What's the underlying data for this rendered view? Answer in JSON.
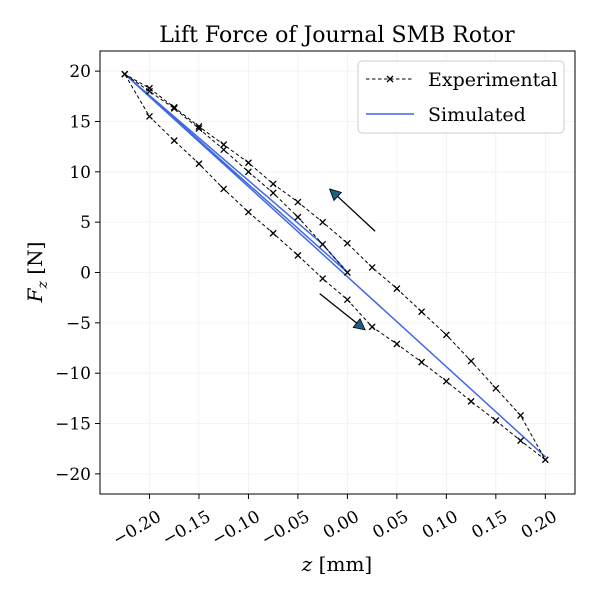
{
  "chart_data": {
    "type": "line",
    "title": "Lift Force of Journal SMB Rotor",
    "xlabel": "z [mm]",
    "ylabel": "F_z [N]",
    "xlim": [
      -0.25,
      0.23
    ],
    "ylim": [
      -22,
      22
    ],
    "x_ticks": [
      -0.2,
      -0.15,
      -0.1,
      -0.05,
      0.0,
      0.05,
      0.1,
      0.15,
      0.2
    ],
    "x_tick_labels": [
      "−0.20",
      "−0.15",
      "−0.10",
      "−0.05",
      "0.00",
      "0.05",
      "0.10",
      "0.15",
      "0.20"
    ],
    "y_ticks": [
      -20,
      -15,
      -10,
      -5,
      0,
      5,
      10,
      15,
      20
    ],
    "y_tick_labels": [
      "−20",
      "−15",
      "−10",
      "−5",
      "0",
      "5",
      "10",
      "15",
      "20"
    ],
    "grid": true,
    "legend_position": "top-right",
    "series": [
      {
        "name": "Experimental",
        "style": "dashed-x",
        "color": "#000000",
        "x": [
          0.0,
          -0.025,
          -0.05,
          -0.075,
          -0.1,
          -0.125,
          -0.15,
          -0.175,
          -0.2,
          -0.225,
          -0.2,
          -0.175,
          -0.15,
          -0.125,
          -0.1,
          -0.075,
          -0.05,
          -0.025,
          0.0,
          0.025,
          0.05,
          0.075,
          0.1,
          0.125,
          0.15,
          0.175,
          0.2,
          0.175,
          0.15,
          0.125,
          0.1,
          0.075,
          0.05,
          0.025,
          0.0,
          -0.025,
          -0.05,
          -0.075,
          -0.1,
          -0.125,
          -0.15,
          -0.175,
          -0.2,
          -0.225
        ],
        "y": [
          0.0,
          2.8,
          5.5,
          7.9,
          10.0,
          12.2,
          14.3,
          16.3,
          18.0,
          19.7,
          15.5,
          13.1,
          10.8,
          8.3,
          6.0,
          3.9,
          1.7,
          -0.6,
          -2.7,
          -5.4,
          -7.1,
          -8.9,
          -10.8,
          -12.8,
          -14.7,
          -16.7,
          -18.6,
          -14.2,
          -11.5,
          -8.8,
          -6.2,
          -3.9,
          -1.6,
          0.5,
          2.9,
          5.0,
          7.0,
          8.8,
          10.9,
          12.7,
          14.5,
          16.4,
          18.3,
          19.7
        ]
      },
      {
        "name": "Simulated",
        "style": "solid",
        "color": "#4169e1",
        "x": [
          0.0,
          -0.225,
          0.2,
          -0.225,
          0.2,
          -0.225,
          -0.025,
          0.0
        ],
        "y": [
          0.0,
          19.7,
          -18.3,
          19.7,
          -18.3,
          19.7,
          2.8,
          0.0
        ]
      }
    ],
    "annotations": [
      {
        "type": "arrow",
        "from": [
          0.028,
          4.1
        ],
        "to": [
          -0.018,
          8.3
        ],
        "color": "#1f5f86"
      },
      {
        "type": "arrow",
        "from": [
          -0.028,
          -2.1
        ],
        "to": [
          0.018,
          -5.7
        ],
        "color": "#1f5f86"
      }
    ]
  }
}
